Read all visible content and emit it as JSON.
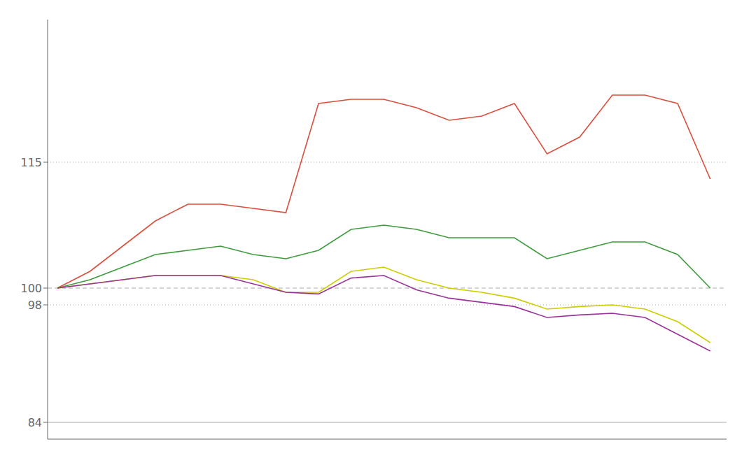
{
  "chart_data": {
    "type": "line",
    "x": [
      0,
      1,
      2,
      3,
      4,
      5,
      6,
      7,
      8,
      9,
      10,
      11,
      12,
      13,
      14,
      15,
      16,
      17,
      18,
      19,
      20
    ],
    "series": [
      {
        "color": "#d94f3d",
        "values": [
          100,
          102,
          105,
          108,
          110,
          110,
          109.5,
          109,
          122,
          122.5,
          122.5,
          121.5,
          120,
          120.5,
          122,
          116,
          118,
          123,
          123,
          122,
          113
        ]
      },
      {
        "color": "#3c9c3c",
        "values": [
          100,
          101,
          102.5,
          104,
          104.5,
          105,
          104,
          103.5,
          104.5,
          107,
          107.5,
          107,
          106,
          106,
          106,
          103.5,
          104.5,
          105.5,
          105.5,
          104,
          100
        ]
      },
      {
        "color": "#cccc00",
        "values": [
          100,
          100.5,
          101,
          101.5,
          101.5,
          101.5,
          101,
          99.5,
          99.5,
          102,
          102.5,
          101,
          100,
          99.5,
          98.8,
          97.5,
          97.8,
          98,
          97.5,
          96,
          93.5
        ]
      },
      {
        "color": "#993399",
        "values": [
          100,
          100.5,
          101,
          101.5,
          101.5,
          101.5,
          100.5,
          99.5,
          99.3,
          101.2,
          101.5,
          99.8,
          98.8,
          98.3,
          97.8,
          96.5,
          96.8,
          97,
          96.5,
          94.5,
          92.5
        ]
      }
    ],
    "xlim": [
      -0.3,
      20.5
    ],
    "xticks": [],
    "ylim": [
      82,
      132
    ],
    "yticks": [
      84,
      98,
      100,
      115
    ],
    "tick_labels": "y",
    "reference_lines": [
      {
        "value": 100,
        "line_style": "dashed",
        "color": "#aaaaaa"
      },
      {
        "value": 115,
        "line_style": "dotted",
        "color": "#aaaaaa"
      },
      {
        "value": 98,
        "line_style": "dotted",
        "color": "#aaaaaa"
      },
      {
        "value": 84,
        "line_style": "solid",
        "color": "#aaaaaa"
      }
    ]
  }
}
